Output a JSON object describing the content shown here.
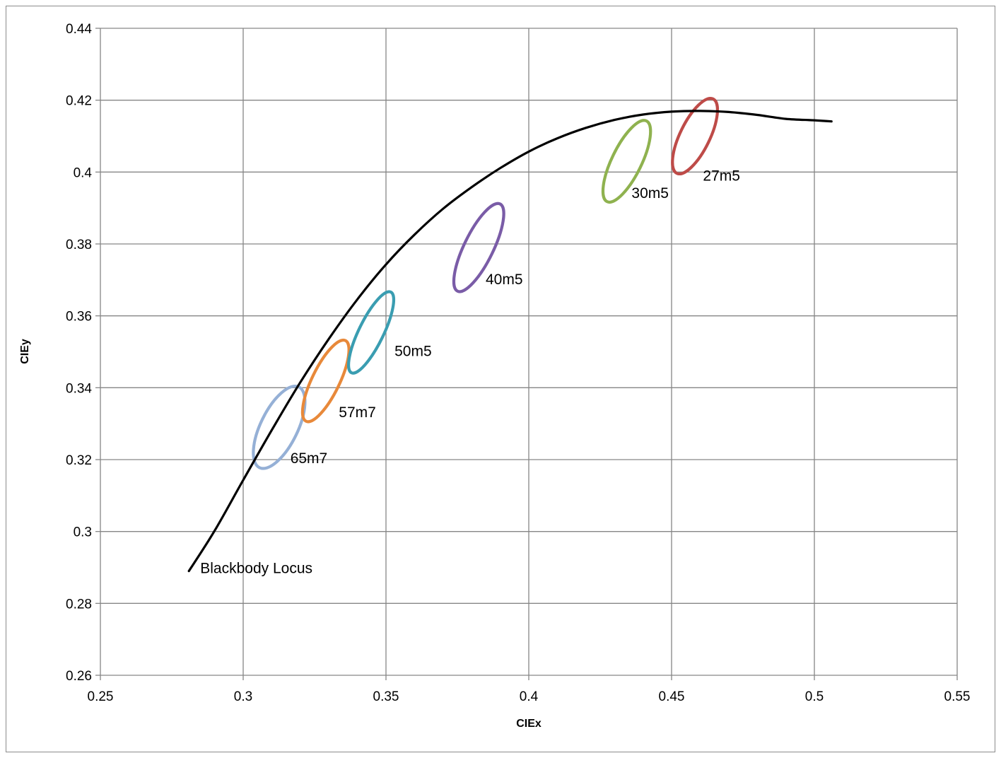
{
  "chart_data": {
    "type": "scatter",
    "title": "",
    "xlabel": "CIEx",
    "ylabel": "CIEy",
    "xlim": [
      0.25,
      0.55
    ],
    "ylim": [
      0.26,
      0.44
    ],
    "xticks": [
      "0.25",
      "0.3",
      "0.35",
      "0.4",
      "0.45",
      "0.5",
      "0.55"
    ],
    "yticks": [
      "0.26",
      "0.28",
      "0.3",
      "0.32",
      "0.34",
      "0.36",
      "0.38",
      "0.4",
      "0.42",
      "0.44"
    ],
    "grid": true,
    "legend": "none",
    "blackbody_locus": {
      "label": "Blackbody Locus",
      "color": "#000000",
      "x": [
        0.281,
        0.29,
        0.3,
        0.31,
        0.32,
        0.33,
        0.34,
        0.35,
        0.36,
        0.37,
        0.38,
        0.39,
        0.4,
        0.41,
        0.42,
        0.43,
        0.44,
        0.45,
        0.46,
        0.47,
        0.48,
        0.49,
        0.5,
        0.506
      ],
      "y": [
        0.289,
        0.3002,
        0.3143,
        0.3282,
        0.3415,
        0.3536,
        0.3646,
        0.3743,
        0.3826,
        0.3898,
        0.3958,
        0.4011,
        0.4057,
        0.4094,
        0.4123,
        0.4145,
        0.416,
        0.4168,
        0.417,
        0.4167,
        0.4159,
        0.4148,
        0.4144,
        0.4141
      ]
    },
    "ellipses": [
      {
        "label": "65m7",
        "color": "#95b0d6",
        "cx": 0.3126,
        "cy": 0.329,
        "rx": 0.0065,
        "ry": 0.0125,
        "label_x": 0.3165,
        "label_y": 0.319
      },
      {
        "label": "57m7",
        "color": "#e8893a",
        "cx": 0.3289,
        "cy": 0.3419,
        "rx": 0.0048,
        "ry": 0.0125,
        "label_x": 0.3335,
        "label_y": 0.3318
      },
      {
        "label": "50m5",
        "color": "#3a9db1",
        "cx": 0.3448,
        "cy": 0.3554,
        "rx": 0.0043,
        "ry": 0.0125,
        "label_x": 0.353,
        "label_y": 0.3488
      },
      {
        "label": "40m5",
        "color": "#7a5ca7",
        "cx": 0.3825,
        "cy": 0.379,
        "rx": 0.0051,
        "ry": 0.0135,
        "label_x": 0.3849,
        "label_y": 0.3688
      },
      {
        "label": "30m5",
        "color": "#8fb24f",
        "cx": 0.4343,
        "cy": 0.403,
        "rx": 0.0052,
        "ry": 0.0125,
        "label_x": 0.436,
        "label_y": 0.3928
      },
      {
        "label": "27m5",
        "color": "#be4b48",
        "cx": 0.4582,
        "cy": 0.41,
        "rx": 0.0052,
        "ry": 0.0115,
        "label_x": 0.461,
        "label_y": 0.3976
      }
    ]
  }
}
